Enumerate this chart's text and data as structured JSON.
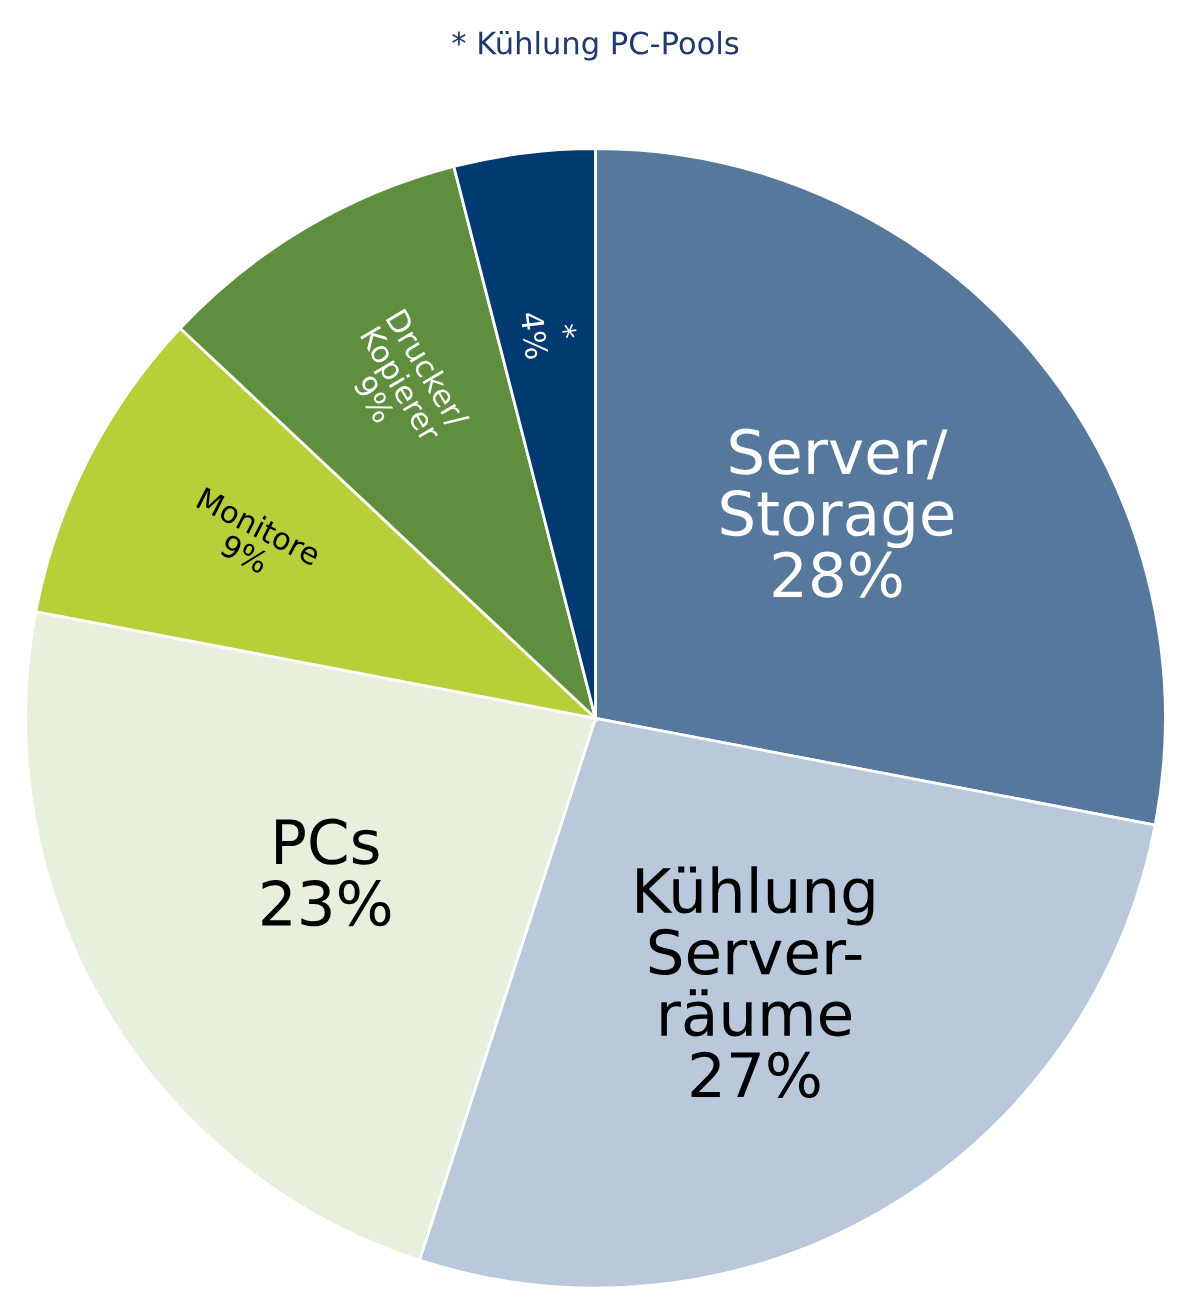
{
  "chart_data": {
    "type": "pie",
    "title": "* Kühlung PC-Pools",
    "categories": [
      "Server/\nStorage",
      "Kühlung\nServer-\nräume",
      "PCs",
      "Monitore",
      "Drucker/\nKopierer",
      "*"
    ],
    "values": [
      28,
      27,
      23,
      9,
      9,
      4
    ],
    "value_labels": [
      "28%",
      "27%",
      "23%",
      "9%",
      "9%",
      "4%"
    ],
    "colors": [
      "#56789c",
      "#b9c8da",
      "#e6f0dc",
      "#b8cf3a",
      "#5f8f3e",
      "#003a70"
    ],
    "legend": false
  }
}
